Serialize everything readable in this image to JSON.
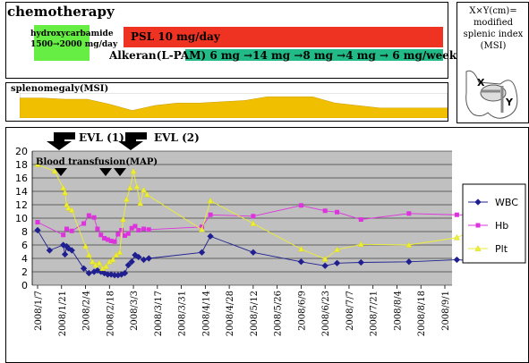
{
  "chemo": {
    "title": "chemotherapy",
    "hydroxy_line1": "hydroxycarbamide",
    "hydroxy_line2": "1500→2000 mg/day",
    "psl": "PSL   10 mg/day",
    "alkeran": "Alkeran(L-PAM) 6 mg →14 mg →8 mg   →4 mg   →  6 mg/week"
  },
  "msi": {
    "title": "splenomegaly(MSI)",
    "values": [
      16,
      16,
      15,
      15,
      11,
      6,
      10,
      12,
      12,
      13,
      14,
      17,
      17,
      17,
      12,
      10,
      8,
      8,
      8,
      8
    ],
    "ylim": [
      0,
      20
    ]
  },
  "msi_legend": {
    "line1": "X×Y(cm)=",
    "line2": "modified",
    "line3": "splenic index",
    "line4": "(MSI)",
    "x_label": "X",
    "y_label": "Y"
  },
  "annotations": {
    "evl1": "EVL (1)",
    "evl2": "EVL (2)",
    "transfusion": "Blood transfusion(MAP)"
  },
  "colors": {
    "wbc": "#1f1f8f",
    "hb": "#dd33dd",
    "plt": "#eeee33",
    "plot_bg": "#c0c0c0",
    "msi": "#f0c000",
    "psl": "#ee3322",
    "alkeran": "#22bb88",
    "hydroxy": "#66ee44"
  },
  "chart_data": {
    "type": "line",
    "x_tick_labels": [
      "2008/1/7",
      "2008/1/21",
      "2008/2/4",
      "2008/2/18",
      "2008/3/3",
      "2008/3/17",
      "2008/3/31",
      "2008/4/14",
      "2008/4/28",
      "2008/5/12",
      "2008/5/26",
      "2008/6/9",
      "2008/6/23",
      "2008/7/7",
      "2008/7/21",
      "2008/8/4",
      "2008/8/18",
      "2008/9/1"
    ],
    "ylim": [
      0,
      20
    ],
    "y_ticks": [
      0,
      2,
      4,
      6,
      8,
      10,
      12,
      14,
      16,
      18,
      20
    ],
    "legend_position": "right",
    "series": [
      {
        "name": "WBC",
        "x": [
          "2008/1/7",
          "2008/1/14",
          "2008/1/22",
          "2008/1/23",
          "2008/1/24",
          "2008/1/25",
          "2008/1/27",
          "2008/2/3",
          "2008/2/6",
          "2008/2/9",
          "2008/2/11",
          "2008/2/13",
          "2008/2/15",
          "2008/2/17",
          "2008/2/19",
          "2008/2/21",
          "2008/2/23",
          "2008/2/25",
          "2008/2/27",
          "2008/2/29",
          "2008/3/2",
          "2008/3/4",
          "2008/3/6",
          "2008/3/9",
          "2008/3/12",
          "2008/4/12",
          "2008/4/17",
          "2008/5/12",
          "2008/6/9",
          "2008/6/23",
          "2008/6/30",
          "2008/7/14",
          "2008/8/11",
          "2008/9/8",
          "2008/9/15"
        ],
        "values": [
          8.2,
          5.2,
          6.0,
          4.6,
          5.8,
          5.5,
          5.2,
          2.5,
          1.8,
          2.0,
          2.2,
          2.0,
          1.8,
          1.6,
          1.6,
          1.5,
          1.5,
          1.6,
          1.8,
          3.0,
          3.5,
          4.5,
          4.2,
          3.8,
          4.0,
          4.9,
          7.3,
          4.9,
          3.5,
          2.9,
          3.3,
          3.4,
          3.5,
          3.8,
          3.7
        ]
      },
      {
        "name": "Hb",
        "x": [
          "2008/1/7",
          "2008/1/22",
          "2008/1/24",
          "2008/1/27",
          "2008/2/3",
          "2008/2/6",
          "2008/2/9",
          "2008/2/11",
          "2008/2/13",
          "2008/2/15",
          "2008/2/17",
          "2008/2/19",
          "2008/2/21",
          "2008/2/23",
          "2008/2/25",
          "2008/2/27",
          "2008/2/29",
          "2008/3/2",
          "2008/3/4",
          "2008/3/6",
          "2008/3/9",
          "2008/3/12",
          "2008/4/12",
          "2008/4/17",
          "2008/5/12",
          "2008/6/9",
          "2008/6/23",
          "2008/6/30",
          "2008/7/14",
          "2008/8/11",
          "2008/9/8",
          "2008/9/15"
        ],
        "values": [
          9.4,
          7.5,
          8.4,
          8.1,
          9.2,
          10.4,
          10.1,
          8.4,
          7.5,
          7.0,
          6.8,
          6.6,
          6.5,
          7.6,
          8.2,
          7.4,
          7.7,
          8.5,
          8.8,
          8.2,
          8.4,
          8.3,
          8.7,
          10.5,
          10.3,
          11.9,
          11.1,
          10.9,
          9.8,
          10.7,
          10.5,
          10.5
        ]
      },
      {
        "name": "Plt",
        "x": [
          "2008/1/7",
          "2008/1/17",
          "2008/1/22",
          "2008/1/23",
          "2008/1/24",
          "2008/1/25",
          "2008/1/27",
          "2008/2/4",
          "2008/2/6",
          "2008/2/8",
          "2008/2/10",
          "2008/2/12",
          "2008/2/14",
          "2008/2/16",
          "2008/2/18",
          "2008/2/20",
          "2008/2/22",
          "2008/2/24",
          "2008/2/26",
          "2008/2/28",
          "2008/3/1",
          "2008/3/3",
          "2008/3/5",
          "2008/3/7",
          "2008/3/9",
          "2008/3/11",
          "2008/4/12",
          "2008/4/17",
          "2008/5/12",
          "2008/6/9",
          "2008/6/23",
          "2008/6/30",
          "2008/7/14",
          "2008/8/11",
          "2008/9/8",
          "2008/9/15"
        ],
        "values": [
          18.0,
          17.0,
          14.5,
          13.8,
          12.0,
          11.5,
          11.2,
          5.8,
          4.5,
          3.5,
          3.0,
          3.3,
          2.5,
          2.8,
          3.5,
          3.8,
          4.5,
          4.9,
          9.8,
          12.8,
          14.5,
          17.0,
          14.7,
          12.2,
          14.2,
          13.5,
          8.3,
          12.6,
          9.2,
          5.4,
          3.9,
          5.3,
          6.1,
          6.0,
          7.1,
          7.9
        ]
      }
    ]
  }
}
